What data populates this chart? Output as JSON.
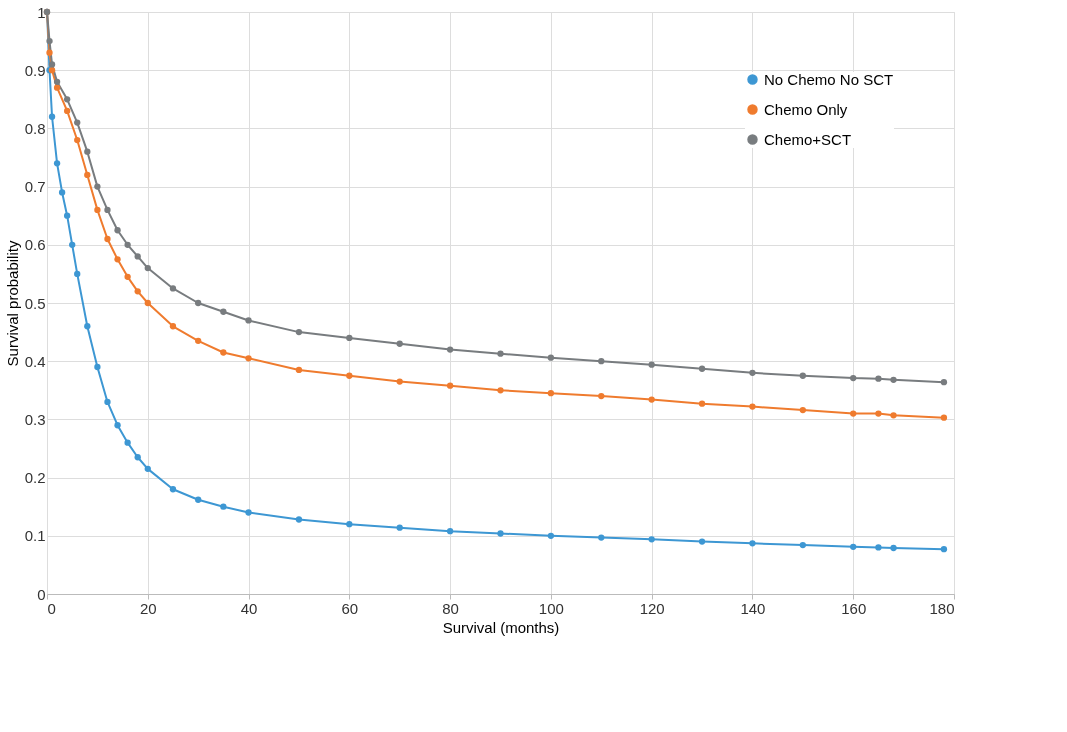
{
  "chart_data": {
    "type": "line",
    "xlabel": "Survival (months)",
    "ylabel": "Survival probability",
    "xlim": [
      0,
      180
    ],
    "xticks": [
      0,
      20,
      40,
      60,
      80,
      100,
      120,
      140,
      160,
      180
    ],
    "ylim": [
      0,
      1
    ],
    "yticks": [
      0,
      0.1,
      0.2,
      0.3,
      0.4,
      0.5,
      0.6,
      0.7,
      0.8,
      0.9,
      1
    ],
    "grid": true,
    "legend": "top right",
    "marker": "circle",
    "line_style": "solid",
    "series": [
      {
        "name": "No Chemo No SCT",
        "color": "#3d97d3",
        "x": [
          0,
          0.5,
          1,
          2,
          3,
          4,
          5,
          6,
          8,
          10,
          12,
          14,
          16,
          18,
          20,
          25,
          30,
          35,
          40,
          50,
          60,
          70,
          80,
          90,
          100,
          110,
          120,
          130,
          140,
          150,
          160,
          165,
          168,
          178
        ],
        "values": [
          1,
          0.9,
          0.82,
          0.74,
          0.69,
          0.65,
          0.6,
          0.55,
          0.46,
          0.39,
          0.33,
          0.29,
          0.26,
          0.235,
          0.215,
          0.18,
          0.162,
          0.15,
          0.14,
          0.128,
          0.12,
          0.114,
          0.108,
          0.104,
          0.1,
          0.097,
          0.094,
          0.09,
          0.087,
          0.084,
          0.081,
          0.08,
          0.079,
          0.077
        ]
      },
      {
        "name": "Chemo Only",
        "color": "#ef7b2e",
        "x": [
          0,
          0.5,
          1,
          2,
          4,
          6,
          8,
          10,
          12,
          14,
          16,
          18,
          20,
          25,
          30,
          35,
          40,
          50,
          60,
          70,
          80,
          90,
          100,
          110,
          120,
          130,
          140,
          150,
          160,
          165,
          168,
          178
        ],
        "values": [
          1,
          0.93,
          0.9,
          0.87,
          0.83,
          0.78,
          0.72,
          0.66,
          0.61,
          0.575,
          0.545,
          0.52,
          0.5,
          0.46,
          0.435,
          0.415,
          0.405,
          0.385,
          0.375,
          0.365,
          0.358,
          0.35,
          0.345,
          0.34,
          0.334,
          0.327,
          0.322,
          0.316,
          0.31,
          0.31,
          0.307,
          0.303
        ]
      },
      {
        "name": "Chemo+SCT",
        "color": "#787c7f",
        "x": [
          0,
          0.5,
          1,
          2,
          4,
          6,
          8,
          10,
          12,
          14,
          16,
          18,
          20,
          25,
          30,
          35,
          40,
          50,
          60,
          70,
          80,
          90,
          100,
          110,
          120,
          130,
          140,
          150,
          160,
          165,
          168,
          178
        ],
        "values": [
          1,
          0.95,
          0.91,
          0.88,
          0.85,
          0.81,
          0.76,
          0.7,
          0.66,
          0.625,
          0.6,
          0.58,
          0.56,
          0.525,
          0.5,
          0.485,
          0.47,
          0.45,
          0.44,
          0.43,
          0.42,
          0.413,
          0.406,
          0.4,
          0.394,
          0.387,
          0.38,
          0.375,
          0.371,
          0.37,
          0.368,
          0.364
        ]
      }
    ]
  }
}
